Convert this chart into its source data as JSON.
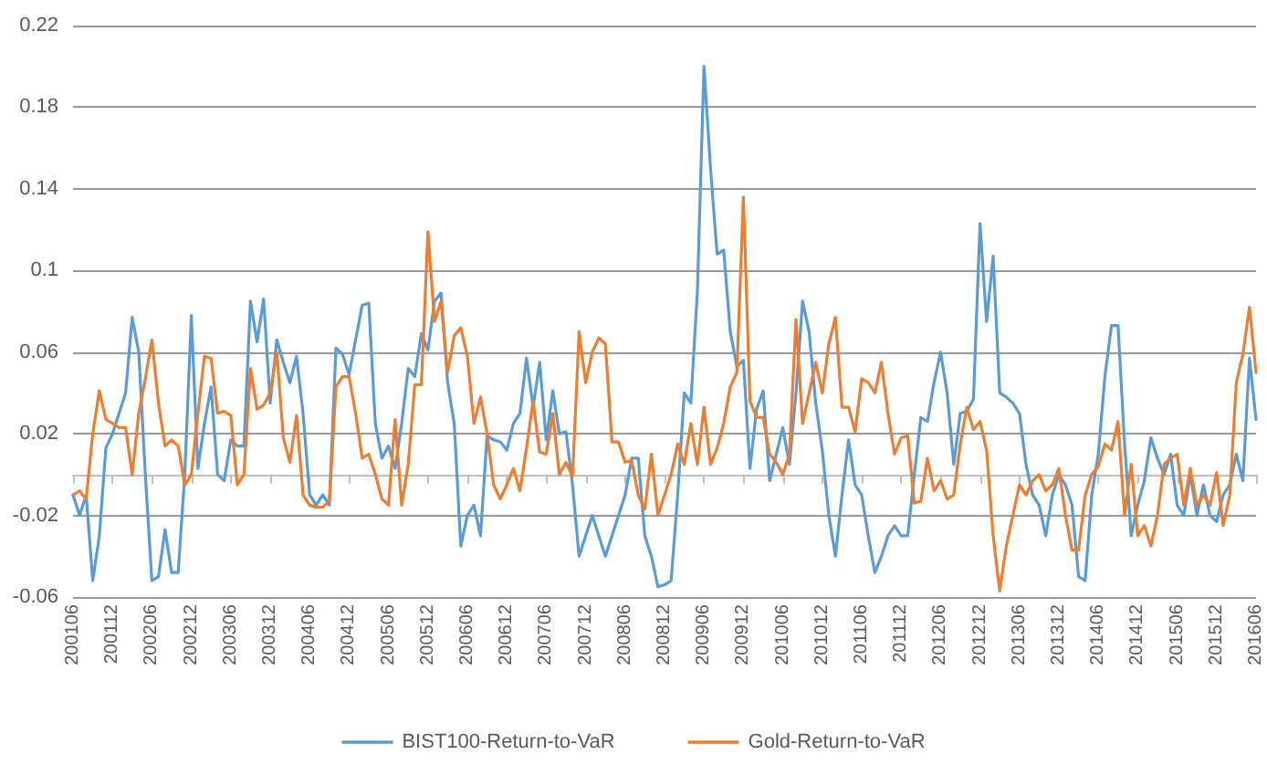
{
  "chart_data": {
    "type": "line",
    "categories": [
      "200106",
      null,
      null,
      null,
      null,
      null,
      "200112",
      null,
      null,
      null,
      null,
      null,
      "200206",
      null,
      null,
      null,
      null,
      null,
      "200212",
      null,
      null,
      null,
      null,
      null,
      "200306",
      null,
      null,
      null,
      null,
      null,
      "200312",
      null,
      null,
      null,
      null,
      null,
      "200406",
      null,
      null,
      null,
      null,
      null,
      "200412",
      null,
      null,
      null,
      null,
      null,
      "200506",
      null,
      null,
      null,
      null,
      null,
      "200512",
      null,
      null,
      null,
      null,
      null,
      "200606",
      null,
      null,
      null,
      null,
      null,
      "200612",
      null,
      null,
      null,
      null,
      null,
      "200706",
      null,
      null,
      null,
      null,
      null,
      "200712",
      null,
      null,
      null,
      null,
      null,
      "200806",
      null,
      null,
      null,
      null,
      null,
      "200812",
      null,
      null,
      null,
      null,
      null,
      "200906",
      null,
      null,
      null,
      null,
      null,
      "200912",
      null,
      null,
      null,
      null,
      null,
      "201006",
      null,
      null,
      null,
      null,
      null,
      "201012",
      null,
      null,
      null,
      null,
      null,
      "201106",
      null,
      null,
      null,
      null,
      null,
      "201112",
      null,
      null,
      null,
      null,
      null,
      "201206",
      null,
      null,
      null,
      null,
      null,
      "201212",
      null,
      null,
      null,
      null,
      null,
      "201306",
      null,
      null,
      null,
      null,
      null,
      "201312",
      null,
      null,
      null,
      null,
      null,
      "201406",
      null,
      null,
      null,
      null,
      null,
      "201412",
      null,
      null,
      null,
      null,
      null,
      "201506",
      null,
      null,
      null,
      null,
      null,
      "201512",
      null,
      null,
      null,
      null,
      null,
      "201606"
    ],
    "series": [
      {
        "name": "BIST100-Return-to-VaR",
        "color": "#5b9bd5",
        "values": [
          -0.01,
          -0.02,
          -0.01,
          -0.052,
          -0.03,
          0.013,
          0.02,
          0.03,
          0.04,
          0.077,
          0.06,
          0.0,
          -0.052,
          -0.05,
          -0.027,
          -0.048,
          -0.048,
          0.0,
          0.078,
          0.003,
          0.025,
          0.043,
          0.0,
          -0.003,
          0.017,
          0.014,
          0.014,
          0.085,
          0.065,
          0.086,
          0.035,
          0.066,
          0.055,
          0.045,
          0.058,
          0.03,
          -0.01,
          -0.015,
          -0.01,
          -0.015,
          0.062,
          0.059,
          0.049,
          0.066,
          0.083,
          0.084,
          0.025,
          0.008,
          0.014,
          0.003,
          0.025,
          0.052,
          0.048,
          0.069,
          0.061,
          0.085,
          0.089,
          0.045,
          0.025,
          -0.035,
          -0.02,
          -0.015,
          -0.03,
          0.019,
          0.017,
          0.016,
          0.012,
          0.025,
          0.03,
          0.057,
          0.033,
          0.055,
          0.017,
          0.041,
          0.02,
          0.021,
          -0.005,
          -0.04,
          -0.03,
          -0.02,
          -0.03,
          -0.04,
          -0.03,
          -0.02,
          -0.01,
          0.008,
          0.008,
          -0.03,
          -0.04,
          -0.055,
          -0.054,
          -0.052,
          -0.01,
          0.04,
          0.035,
          0.09,
          0.2,
          0.15,
          0.108,
          0.11,
          0.07,
          0.053,
          0.056,
          0.003,
          0.032,
          0.041,
          -0.003,
          0.01,
          0.023,
          0.005,
          0.04,
          0.085,
          0.07,
          0.035,
          0.012,
          -0.02,
          -0.04,
          -0.01,
          0.017,
          -0.005,
          -0.01,
          -0.03,
          -0.048,
          -0.04,
          -0.03,
          -0.025,
          -0.03,
          -0.03,
          0.0,
          0.028,
          0.026,
          0.045,
          0.06,
          0.04,
          0.005,
          0.03,
          0.031,
          0.037,
          0.123,
          0.075,
          0.107,
          0.04,
          0.038,
          0.035,
          0.03,
          0.005,
          -0.01,
          -0.015,
          -0.03,
          -0.01,
          0.0,
          -0.005,
          -0.015,
          -0.05,
          -0.052,
          -0.01,
          0.01,
          0.048,
          0.073,
          0.073,
          0.015,
          -0.03,
          -0.015,
          -0.003,
          0.018,
          0.008,
          0.0,
          0.01,
          -0.015,
          -0.02,
          0.0,
          -0.02,
          -0.005,
          -0.02,
          -0.023,
          -0.01,
          -0.005,
          0.01,
          -0.003,
          0.057,
          0.027
        ]
      },
      {
        "name": "Gold-Return-to-VaR",
        "color": "#ed7d31",
        "values": [
          -0.01,
          -0.008,
          -0.012,
          0.02,
          0.041,
          0.027,
          0.025,
          0.023,
          0.023,
          0.0,
          0.03,
          0.047,
          0.066,
          0.035,
          0.014,
          0.017,
          0.014,
          -0.005,
          0.0,
          0.03,
          0.058,
          0.057,
          0.03,
          0.031,
          0.029,
          -0.005,
          0.0,
          0.052,
          0.032,
          0.034,
          0.04,
          0.06,
          0.018,
          0.006,
          0.029,
          -0.01,
          -0.015,
          -0.016,
          -0.016,
          -0.013,
          0.043,
          0.048,
          0.048,
          0.03,
          0.008,
          0.01,
          0.0,
          -0.012,
          -0.015,
          0.027,
          -0.015,
          0.005,
          0.044,
          0.044,
          0.119,
          0.075,
          0.085,
          0.05,
          0.068,
          0.072,
          0.058,
          0.025,
          0.038,
          0.02,
          -0.005,
          -0.012,
          -0.005,
          0.003,
          -0.008,
          0.013,
          0.036,
          0.011,
          0.01,
          0.03,
          0.0,
          0.006,
          -0.001,
          0.07,
          0.045,
          0.06,
          0.067,
          0.064,
          0.016,
          0.016,
          0.006,
          0.007,
          -0.01,
          -0.017,
          0.01,
          -0.02,
          -0.01,
          0.0,
          0.015,
          0.005,
          0.025,
          0.005,
          0.033,
          0.005,
          0.013,
          0.025,
          0.043,
          0.05,
          0.136,
          0.036,
          0.028,
          0.028,
          0.01,
          0.006,
          0.0,
          0.01,
          0.076,
          0.025,
          0.04,
          0.055,
          0.04,
          0.064,
          0.077,
          0.033,
          0.033,
          0.021,
          0.047,
          0.045,
          0.04,
          0.055,
          0.03,
          0.01,
          0.018,
          0.019,
          -0.014,
          -0.013,
          0.008,
          -0.008,
          -0.003,
          -0.012,
          -0.01,
          0.015,
          0.033,
          0.022,
          0.026,
          0.012,
          -0.03,
          -0.057,
          -0.035,
          -0.02,
          -0.005,
          -0.01,
          -0.003,
          0.0,
          -0.008,
          -0.005,
          0.003,
          -0.02,
          -0.037,
          -0.037,
          -0.01,
          0.0,
          0.004,
          0.015,
          0.012,
          0.026,
          -0.02,
          0.005,
          -0.03,
          -0.025,
          -0.035,
          -0.02,
          0.005,
          0.008,
          0.01,
          -0.015,
          0.003,
          -0.015,
          -0.01,
          -0.015,
          0.001,
          -0.025,
          -0.01,
          0.045,
          0.059,
          0.082,
          0.05
        ]
      }
    ],
    "ylim": [
      -0.06,
      0.22
    ],
    "yticks": [
      -0.06,
      -0.02,
      0.02,
      0.06,
      0.1,
      0.14,
      0.18,
      0.22
    ],
    "grid": "y",
    "legend": "bottom",
    "marker": "none",
    "line_style": "solid"
  }
}
